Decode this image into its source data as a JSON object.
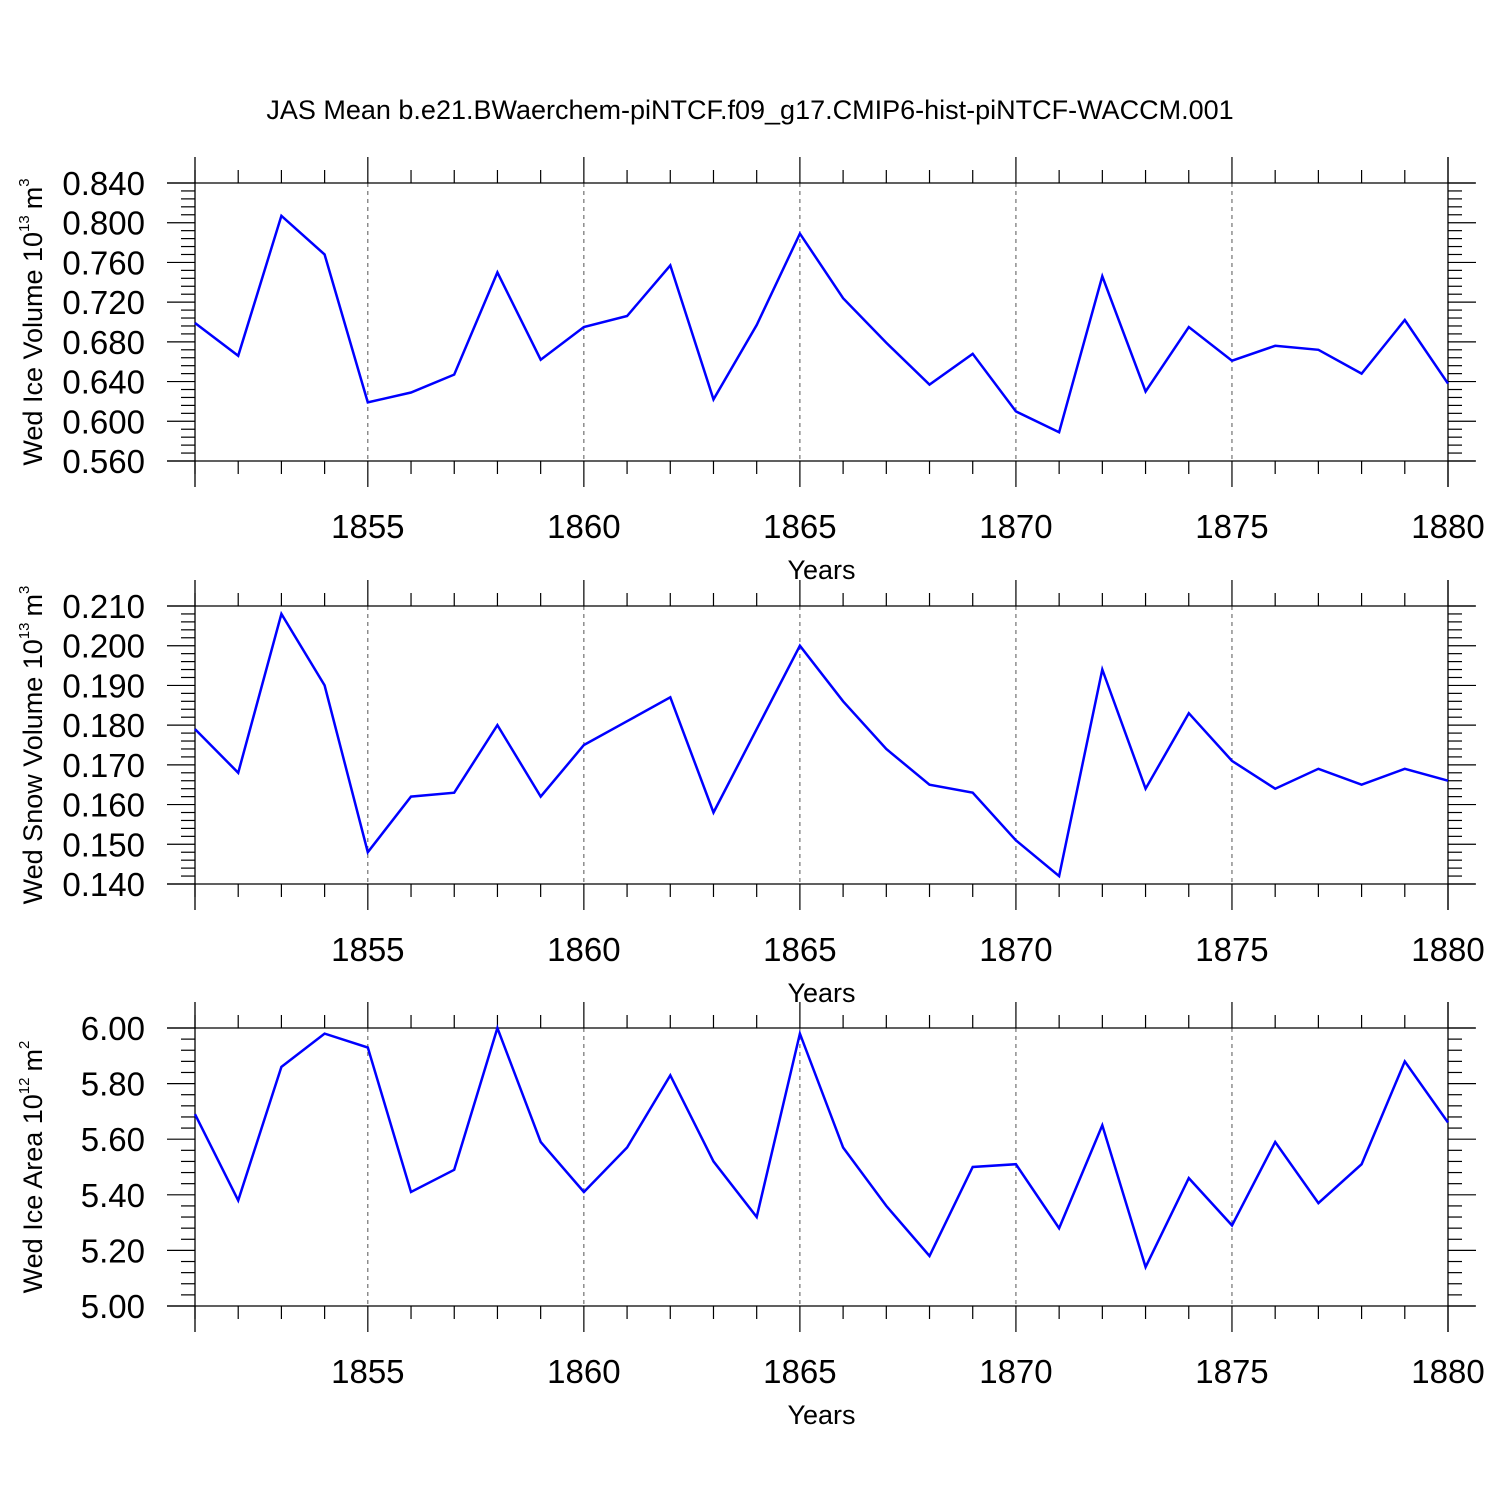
{
  "title": "JAS Mean b.e21.BWaerchem-piNTCF.f09_g17.CMIP6-hist-piNTCF-WACCM.001",
  "line_color": "#0000ff",
  "chart_data": [
    {
      "type": "line",
      "ylabel": {
        "text": "Wed Ice Volume 10",
        "exp": "13",
        "unit": "m",
        "unit_exp": "3"
      },
      "xlabel": "Years",
      "xlim": [
        1851,
        1880
      ],
      "ylim": [
        0.56,
        0.84
      ],
      "yticks": [
        0.56,
        0.6,
        0.64,
        0.68,
        0.72,
        0.76,
        0.8,
        0.84
      ],
      "ytick_labels": [
        "0.560",
        "0.600",
        "0.640",
        "0.680",
        "0.720",
        "0.760",
        "0.800",
        "0.840"
      ],
      "xticks": [
        1855,
        1860,
        1865,
        1870,
        1875,
        1880
      ],
      "xtick_labels": [
        "1855",
        "1860",
        "1865",
        "1870",
        "1875",
        "1880"
      ],
      "grid": "vertical dashed at major x ticks",
      "series": [
        {
          "name": "Wed Ice Volume",
          "x": [
            1851,
            1852,
            1853,
            1854,
            1855,
            1856,
            1857,
            1858,
            1859,
            1860,
            1861,
            1862,
            1863,
            1864,
            1865,
            1866,
            1867,
            1868,
            1869,
            1870,
            1871,
            1872,
            1873,
            1874,
            1875,
            1876,
            1877,
            1878,
            1879,
            1880
          ],
          "values": [
            0.699,
            0.666,
            0.807,
            0.768,
            0.619,
            0.629,
            0.647,
            0.75,
            0.662,
            0.695,
            0.706,
            0.757,
            0.622,
            0.697,
            0.789,
            0.724,
            0.679,
            0.637,
            0.668,
            0.61,
            0.589,
            0.746,
            0.63,
            0.695,
            0.661,
            0.676,
            0.672,
            0.648,
            0.702,
            0.638
          ]
        }
      ]
    },
    {
      "type": "line",
      "ylabel": {
        "text": "Wed Snow Volume 10",
        "exp": "13",
        "unit": "m",
        "unit_exp": "3"
      },
      "xlabel": "Years",
      "xlim": [
        1851,
        1880
      ],
      "ylim": [
        0.14,
        0.21
      ],
      "yticks": [
        0.14,
        0.15,
        0.16,
        0.17,
        0.18,
        0.19,
        0.2,
        0.21
      ],
      "ytick_labels": [
        "0.140",
        "0.150",
        "0.160",
        "0.170",
        "0.180",
        "0.190",
        "0.200",
        "0.210"
      ],
      "xticks": [
        1855,
        1860,
        1865,
        1870,
        1875,
        1880
      ],
      "xtick_labels": [
        "1855",
        "1860",
        "1865",
        "1870",
        "1875",
        "1880"
      ],
      "grid": "vertical dashed at major x ticks",
      "series": [
        {
          "name": "Wed Snow Volume",
          "x": [
            1851,
            1852,
            1853,
            1854,
            1855,
            1856,
            1857,
            1858,
            1859,
            1860,
            1861,
            1862,
            1863,
            1864,
            1865,
            1866,
            1867,
            1868,
            1869,
            1870,
            1871,
            1872,
            1873,
            1874,
            1875,
            1876,
            1877,
            1878,
            1879,
            1880
          ],
          "values": [
            0.179,
            0.168,
            0.208,
            0.19,
            0.148,
            0.162,
            0.163,
            0.18,
            0.162,
            0.175,
            0.181,
            0.187,
            0.158,
            0.179,
            0.2,
            0.186,
            0.174,
            0.165,
            0.163,
            0.151,
            0.142,
            0.194,
            0.164,
            0.183,
            0.171,
            0.164,
            0.169,
            0.165,
            0.169,
            0.166
          ]
        }
      ]
    },
    {
      "type": "line",
      "ylabel": {
        "text": "Wed Ice Area 10",
        "exp": "12",
        "unit": "m",
        "unit_exp": "2"
      },
      "xlabel": "Years",
      "xlim": [
        1851,
        1880
      ],
      "ylim": [
        5.0,
        6.0
      ],
      "yticks": [
        5.0,
        5.2,
        5.4,
        5.6,
        5.8,
        6.0
      ],
      "ytick_labels": [
        "5.00",
        "5.20",
        "5.40",
        "5.60",
        "5.80",
        "6.00"
      ],
      "xticks": [
        1855,
        1860,
        1865,
        1870,
        1875,
        1880
      ],
      "xtick_labels": [
        "1855",
        "1860",
        "1865",
        "1870",
        "1875",
        "1880"
      ],
      "grid": "vertical dashed at major x ticks",
      "series": [
        {
          "name": "Wed Ice Area",
          "x": [
            1851,
            1852,
            1853,
            1854,
            1855,
            1856,
            1857,
            1858,
            1859,
            1860,
            1861,
            1862,
            1863,
            1864,
            1865,
            1866,
            1867,
            1868,
            1869,
            1870,
            1871,
            1872,
            1873,
            1874,
            1875,
            1876,
            1877,
            1878,
            1879,
            1880
          ],
          "values": [
            5.69,
            5.38,
            5.86,
            5.98,
            5.93,
            5.41,
            5.49,
            6.0,
            5.59,
            5.41,
            5.57,
            5.83,
            5.52,
            5.32,
            5.98,
            5.57,
            5.36,
            5.18,
            5.5,
            5.51,
            5.28,
            5.65,
            5.14,
            5.46,
            5.29,
            5.59,
            5.37,
            5.51,
            5.88,
            5.66
          ]
        }
      ]
    }
  ]
}
